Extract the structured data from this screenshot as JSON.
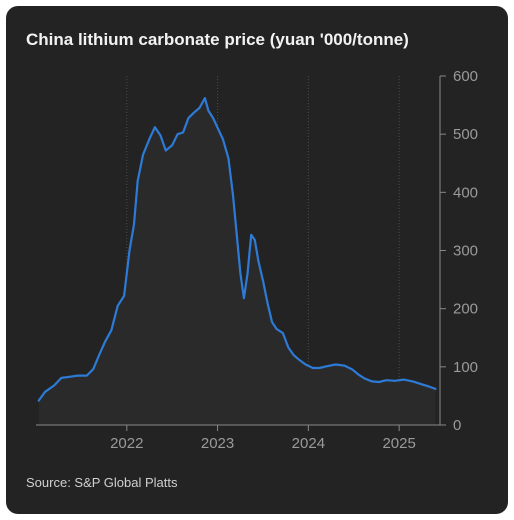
{
  "chart_data": {
    "type": "area",
    "title": "China lithium carbonate price (yuan '000/tonne)",
    "source": "Source: S&P Global Platts",
    "xlabel": "",
    "ylabel": "",
    "x_ticks": [
      "2022",
      "2023",
      "2024",
      "2025"
    ],
    "y_ticks": [
      "600",
      "500",
      "400",
      "300",
      "200",
      "100",
      "0"
    ],
    "ylim": [
      0,
      600
    ],
    "xlim": [
      2021.0,
      2025.45
    ],
    "grid": "vertical only",
    "legend": "none",
    "series": [
      {
        "points": [
          [
            2021.03,
            42
          ],
          [
            2021.1,
            57
          ],
          [
            2021.2,
            68
          ],
          [
            2021.28,
            81
          ],
          [
            2021.38,
            83
          ],
          [
            2021.46,
            85
          ],
          [
            2021.56,
            85
          ],
          [
            2021.63,
            96
          ],
          [
            2021.7,
            122
          ],
          [
            2021.76,
            143
          ],
          [
            2021.83,
            163
          ],
          [
            2021.9,
            205
          ],
          [
            2021.97,
            222
          ],
          [
            2022.03,
            300
          ],
          [
            2022.08,
            345
          ],
          [
            2022.12,
            420
          ],
          [
            2022.18,
            465
          ],
          [
            2022.25,
            492
          ],
          [
            2022.31,
            512
          ],
          [
            2022.37,
            498
          ],
          [
            2022.43,
            472
          ],
          [
            2022.5,
            481
          ],
          [
            2022.56,
            500
          ],
          [
            2022.62,
            503
          ],
          [
            2022.68,
            528
          ],
          [
            2022.74,
            537
          ],
          [
            2022.8,
            545
          ],
          [
            2022.86,
            562
          ],
          [
            2022.9,
            540
          ],
          [
            2022.95,
            528
          ],
          [
            2023.0,
            511
          ],
          [
            2023.06,
            491
          ],
          [
            2023.12,
            458
          ],
          [
            2023.17,
            395
          ],
          [
            2023.21,
            330
          ],
          [
            2023.25,
            262
          ],
          [
            2023.29,
            218
          ],
          [
            2023.33,
            260
          ],
          [
            2023.37,
            327
          ],
          [
            2023.41,
            318
          ],
          [
            2023.45,
            282
          ],
          [
            2023.5,
            248
          ],
          [
            2023.55,
            210
          ],
          [
            2023.6,
            177
          ],
          [
            2023.65,
            165
          ],
          [
            2023.72,
            158
          ],
          [
            2023.78,
            133
          ],
          [
            2023.84,
            120
          ],
          [
            2023.9,
            112
          ],
          [
            2023.97,
            104
          ],
          [
            2024.05,
            98
          ],
          [
            2024.12,
            98
          ],
          [
            2024.2,
            101
          ],
          [
            2024.3,
            104
          ],
          [
            2024.4,
            102
          ],
          [
            2024.48,
            96
          ],
          [
            2024.55,
            87
          ],
          [
            2024.62,
            80
          ],
          [
            2024.7,
            75
          ],
          [
            2024.78,
            74
          ],
          [
            2024.86,
            77
          ],
          [
            2024.95,
            76
          ],
          [
            2025.05,
            78
          ],
          [
            2025.15,
            75
          ],
          [
            2025.25,
            70
          ],
          [
            2025.33,
            66
          ],
          [
            2025.4,
            62
          ]
        ]
      }
    ],
    "colors": {
      "line": "#2d7bd6",
      "card": "#232323",
      "grid": "#4a4a4a",
      "axis": "#888888"
    }
  }
}
